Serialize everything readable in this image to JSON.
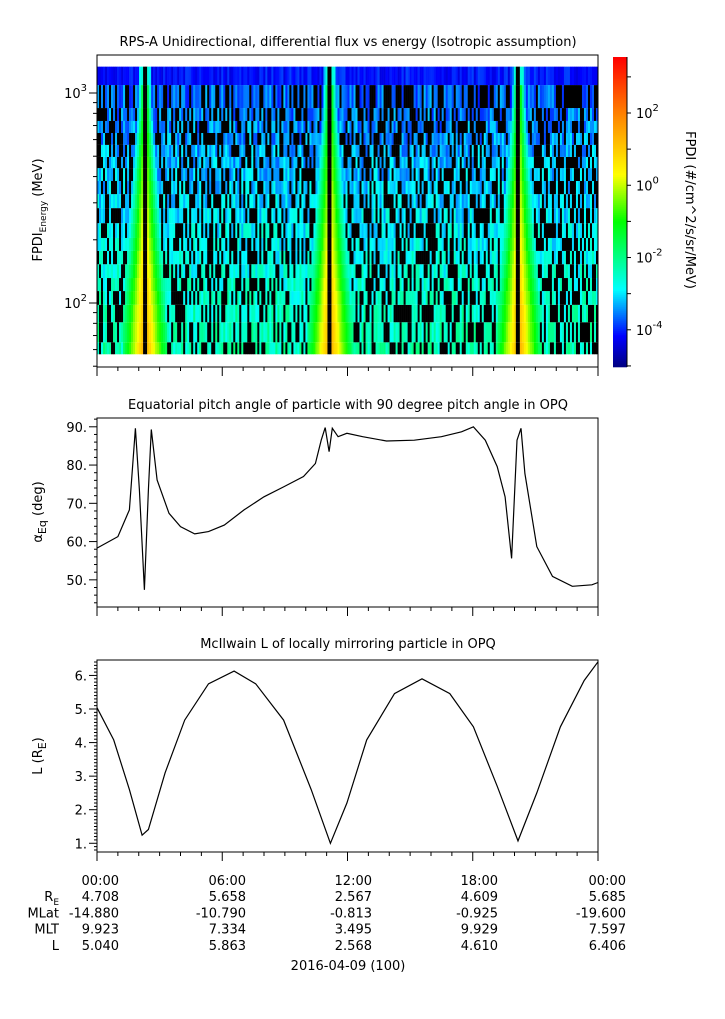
{
  "colors": {
    "axis": "#000000",
    "line": "#000000",
    "no_data": "#000000",
    "background": "#ffffff"
  },
  "chart_data": [
    {
      "type": "heatmap",
      "title": "RPS-A Unidirectional, differential flux vs energy (Isotropic assumption)",
      "ylabel": {
        "main": "FPDI",
        "sub": "Energy",
        "unit": " (MeV)"
      },
      "yscale": "log",
      "ylim": [
        57,
        1335
      ],
      "yticks": [
        {
          "value": 100,
          "base": "10",
          "exp": "2"
        },
        {
          "value": 1000,
          "base": "10",
          "exp": "3"
        }
      ],
      "xlim_hours": [
        0,
        24
      ],
      "energy_channel_edges_MeV": [
        57,
        65,
        81,
        98,
        114,
        131.5,
        153,
        177,
        204,
        240,
        283,
        330,
        381,
        439,
        496,
        566,
        645,
        736,
        848,
        1091,
        1335
      ],
      "high_flux_band_centers_hours": [
        2.3,
        11.16,
        20.2
      ],
      "colorbar": {
        "label": "FPDI (#/cm^2/s/sr/MeV)",
        "scale": "log",
        "range_log10": [
          -5.03,
          3.55
        ],
        "ticks": [
          {
            "value": -4,
            "base": "10",
            "exp": "-4"
          },
          {
            "value": -2,
            "base": "10",
            "exp": "-2"
          },
          {
            "value": 0,
            "base": "10",
            "exp": "0"
          },
          {
            "value": 2,
            "base": "10",
            "exp": "2"
          }
        ],
        "colormap": [
          "#000080",
          "#0000ff",
          "#00ffff",
          "#00ff00",
          "#ffff00",
          "#ff8000",
          "#ff0000"
        ]
      },
      "grid": false
    },
    {
      "type": "line",
      "title": "Equatorial pitch angle of particle with 90 degree pitch angle in OPQ",
      "ylabel": {
        "main": "α",
        "sub": "Eq",
        "unit": " (deg)"
      },
      "ylim": [
        42.9,
        92.3
      ],
      "yticks": [
        50,
        60,
        70,
        80,
        90
      ],
      "ytick_labels": [
        "50.",
        "60.",
        "70.",
        "80.",
        "90."
      ],
      "x_hours": [
        0,
        1.0,
        1.55,
        1.84,
        2.03,
        2.27,
        2.46,
        2.6,
        2.88,
        3.45,
        4.0,
        4.68,
        5.34,
        6.1,
        7.05,
        8.0,
        8.94,
        9.89,
        10.46,
        10.74,
        10.93,
        11.12,
        11.27,
        11.55,
        11.97,
        12.73,
        13.87,
        15.2,
        16.5,
        17.46,
        18.03,
        18.6,
        19.17,
        19.55,
        19.86,
        20.12,
        20.31,
        20.5,
        21.07,
        21.82,
        22.77,
        23.71,
        24
      ],
      "y": [
        58.3,
        61.3,
        68.3,
        89.6,
        73.5,
        47.4,
        73.5,
        89.3,
        76.1,
        67.4,
        63.9,
        62.0,
        62.6,
        64.3,
        68.3,
        71.7,
        74.3,
        77.0,
        80.4,
        86.5,
        89.8,
        83.5,
        89.6,
        87.4,
        88.3,
        87.4,
        86.3,
        86.5,
        87.4,
        88.7,
        90.0,
        86.5,
        79.6,
        71.7,
        55.6,
        86.5,
        89.6,
        77.8,
        58.7,
        50.9,
        48.3,
        48.7,
        49.3
      ],
      "grid": false
    },
    {
      "type": "line",
      "title": "McIlwain L of locally mirroring particle in OPQ",
      "ylabel": {
        "main": "L (R",
        "sub": "E",
        "unit": ")"
      },
      "ylim": [
        0.74,
        6.46
      ],
      "yticks": [
        1,
        2,
        3,
        4,
        5,
        6
      ],
      "ytick_labels": [
        "1.",
        "2.",
        "3.",
        "4.",
        "5.",
        "6."
      ],
      "x_hours": [
        0,
        0.8,
        1.55,
        2.16,
        2.46,
        3.26,
        4.2,
        5.34,
        6.57,
        7.6,
        8.94,
        10.26,
        11.18,
        11.97,
        12.92,
        14.25,
        15.57,
        16.9,
        18.03,
        19.17,
        20.17,
        21.07,
        22.2,
        23.34,
        24
      ],
      "y": [
        5.04,
        4.08,
        2.6,
        1.24,
        1.41,
        3.1,
        4.67,
        5.75,
        6.13,
        5.75,
        4.67,
        2.6,
        1.0,
        2.2,
        4.08,
        5.46,
        5.9,
        5.46,
        4.47,
        2.7,
        1.07,
        2.5,
        4.47,
        5.85,
        6.406
      ],
      "grid": false
    }
  ],
  "x_axis": {
    "tick_hours": [
      0,
      6,
      12,
      18,
      24
    ],
    "tick_labels": [
      "00:00",
      "06:00",
      "12:00",
      "18:00",
      "00:00"
    ],
    "rows": [
      {
        "label": "R",
        "label_sub": "E",
        "values": [
          "4.708",
          "5.658",
          "2.567",
          "4.609",
          "5.685"
        ]
      },
      {
        "label": "MLat",
        "label_sub": "",
        "values": [
          "-14.880",
          "-10.790",
          "-0.813",
          "-0.925",
          "-19.600"
        ]
      },
      {
        "label": "MLT",
        "label_sub": "",
        "values": [
          "9.923",
          "7.334",
          "3.495",
          "9.929",
          "7.597"
        ]
      },
      {
        "label": "L",
        "label_sub": "",
        "values": [
          "5.040",
          "5.863",
          "2.568",
          "4.610",
          "6.406"
        ]
      }
    ],
    "date_label": "2016-04-09 (100)"
  }
}
